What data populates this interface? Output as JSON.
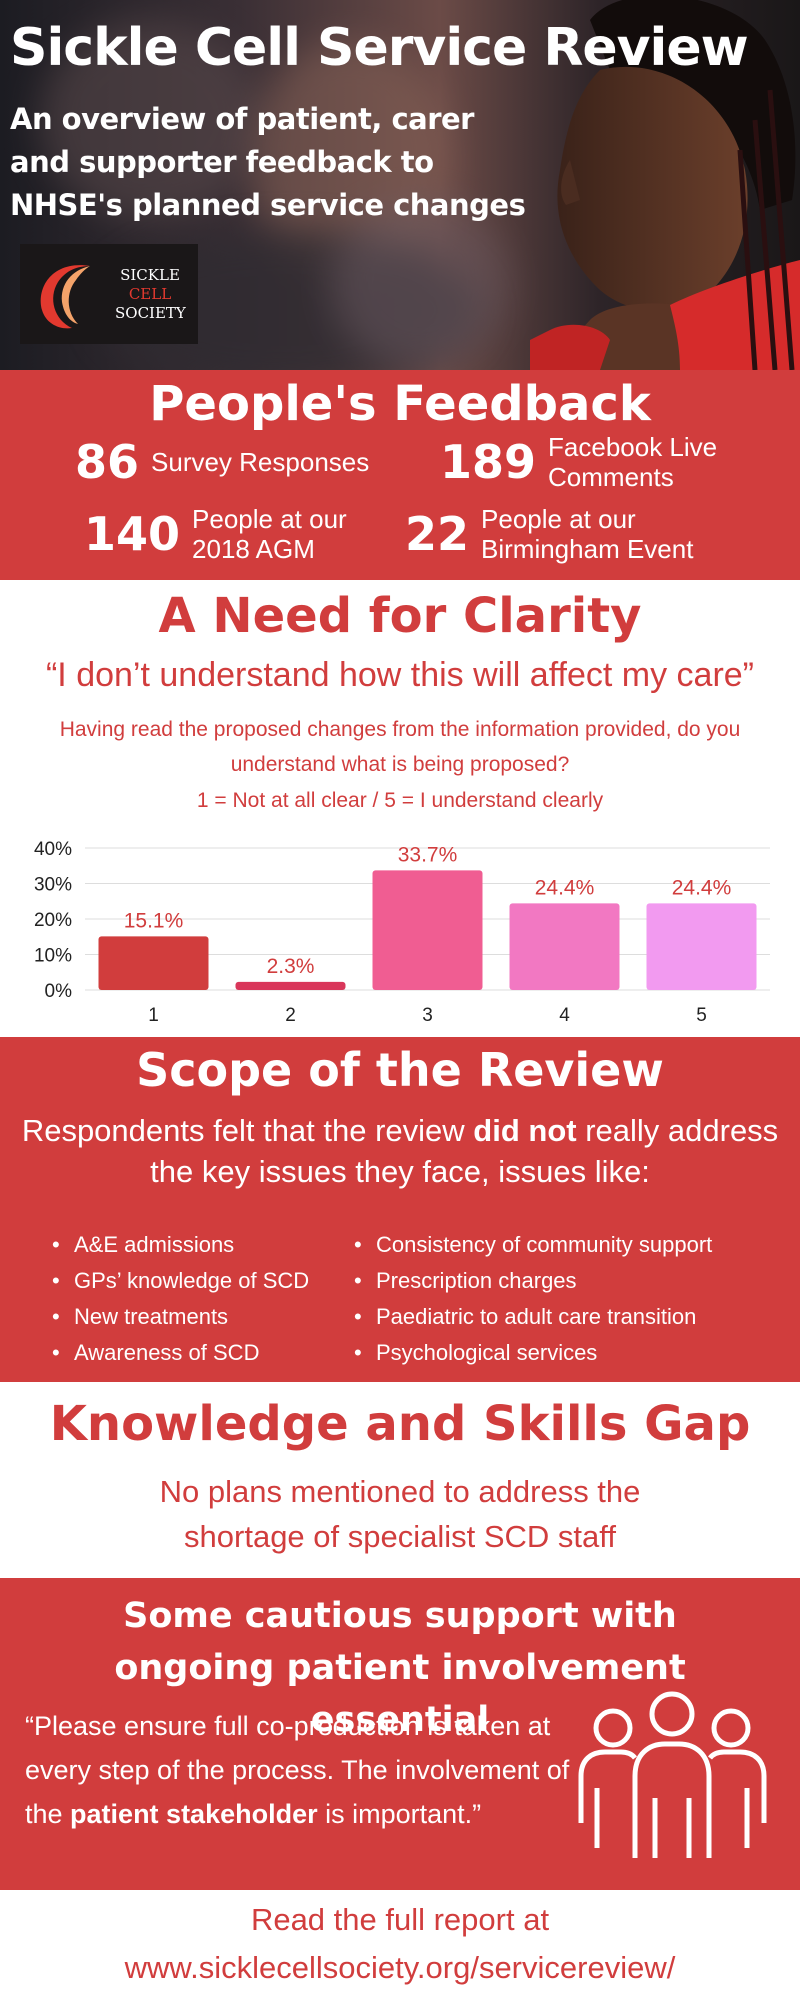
{
  "hero": {
    "title": "Sickle Cell Service Review",
    "subtitle": "An overview of patient, carer and supporter feedback to NHSE's planned service changes",
    "logo": {
      "line1": "SICKLE",
      "line2": "CELL",
      "line3": "SOCIETY",
      "mark_color": "#e2392f"
    }
  },
  "feedback": {
    "title": "People's Feedback",
    "stats": [
      {
        "number": "86",
        "label": "Survey Responses"
      },
      {
        "number": "189",
        "label": "Facebook Live Comments"
      },
      {
        "number": "140",
        "label": "People at our 2018 AGM"
      },
      {
        "number": "22",
        "label": "People at our Birmingham Event"
      }
    ]
  },
  "clarity": {
    "title": "A Need for Clarity",
    "quote": "“I don’t understand how this will affect my care”",
    "question": "Having read the proposed changes from the information provided, do you understand what is being proposed?",
    "scale": "1 = Not at all clear / 5 = I understand clearly"
  },
  "chart_data": {
    "type": "bar",
    "categories": [
      "1",
      "2",
      "3",
      "4",
      "5"
    ],
    "values": [
      15.1,
      2.3,
      33.7,
      24.4,
      24.4
    ],
    "value_labels": [
      "15.1%",
      "2.3%",
      "33.7%",
      "24.4%",
      "24.4%"
    ],
    "y_ticks": [
      "0%",
      "10%",
      "20%",
      "30%",
      "40%"
    ],
    "ylim": [
      0,
      40
    ],
    "grid": true,
    "bar_colors": [
      "#d13d3d",
      "#d9365a",
      "#f05d92",
      "#f278c2",
      "#f29af0"
    ],
    "label_color": "#d13d3d"
  },
  "scope": {
    "title": "Scope of the Review",
    "intro_before": "Respondents felt that the review ",
    "intro_bold": "did not",
    "intro_after": " really address the key issues they face, issues like:",
    "issues_left": [
      "A&E admissions",
      "GPs’ knowledge of SCD",
      "New treatments",
      "Awareness of SCD"
    ],
    "issues_right": [
      "Consistency of community support",
      "Prescription charges",
      "Paediatric to adult care transition",
      "Psychological services"
    ]
  },
  "knowledge": {
    "title": "Knowledge and Skills Gap",
    "text": "No plans mentioned to address the shortage of specialist SCD staff"
  },
  "support": {
    "title": "Some cautious support with ongoing patient involvement essential",
    "quote_before": "“Please ensure full co-production is taken at every step of the process. The involvement of the ",
    "quote_bold": "patient stakeholder",
    "quote_after": " is important.”"
  },
  "footer": {
    "line1": "Read the full report at",
    "line2": "www.sicklecellsociety.org/servicereview/"
  },
  "colors": {
    "brand_red": "#d13d3d",
    "white": "#ffffff"
  },
  "icons": {
    "logo": "crescent-logo-icon",
    "people": "people-group-icon"
  }
}
